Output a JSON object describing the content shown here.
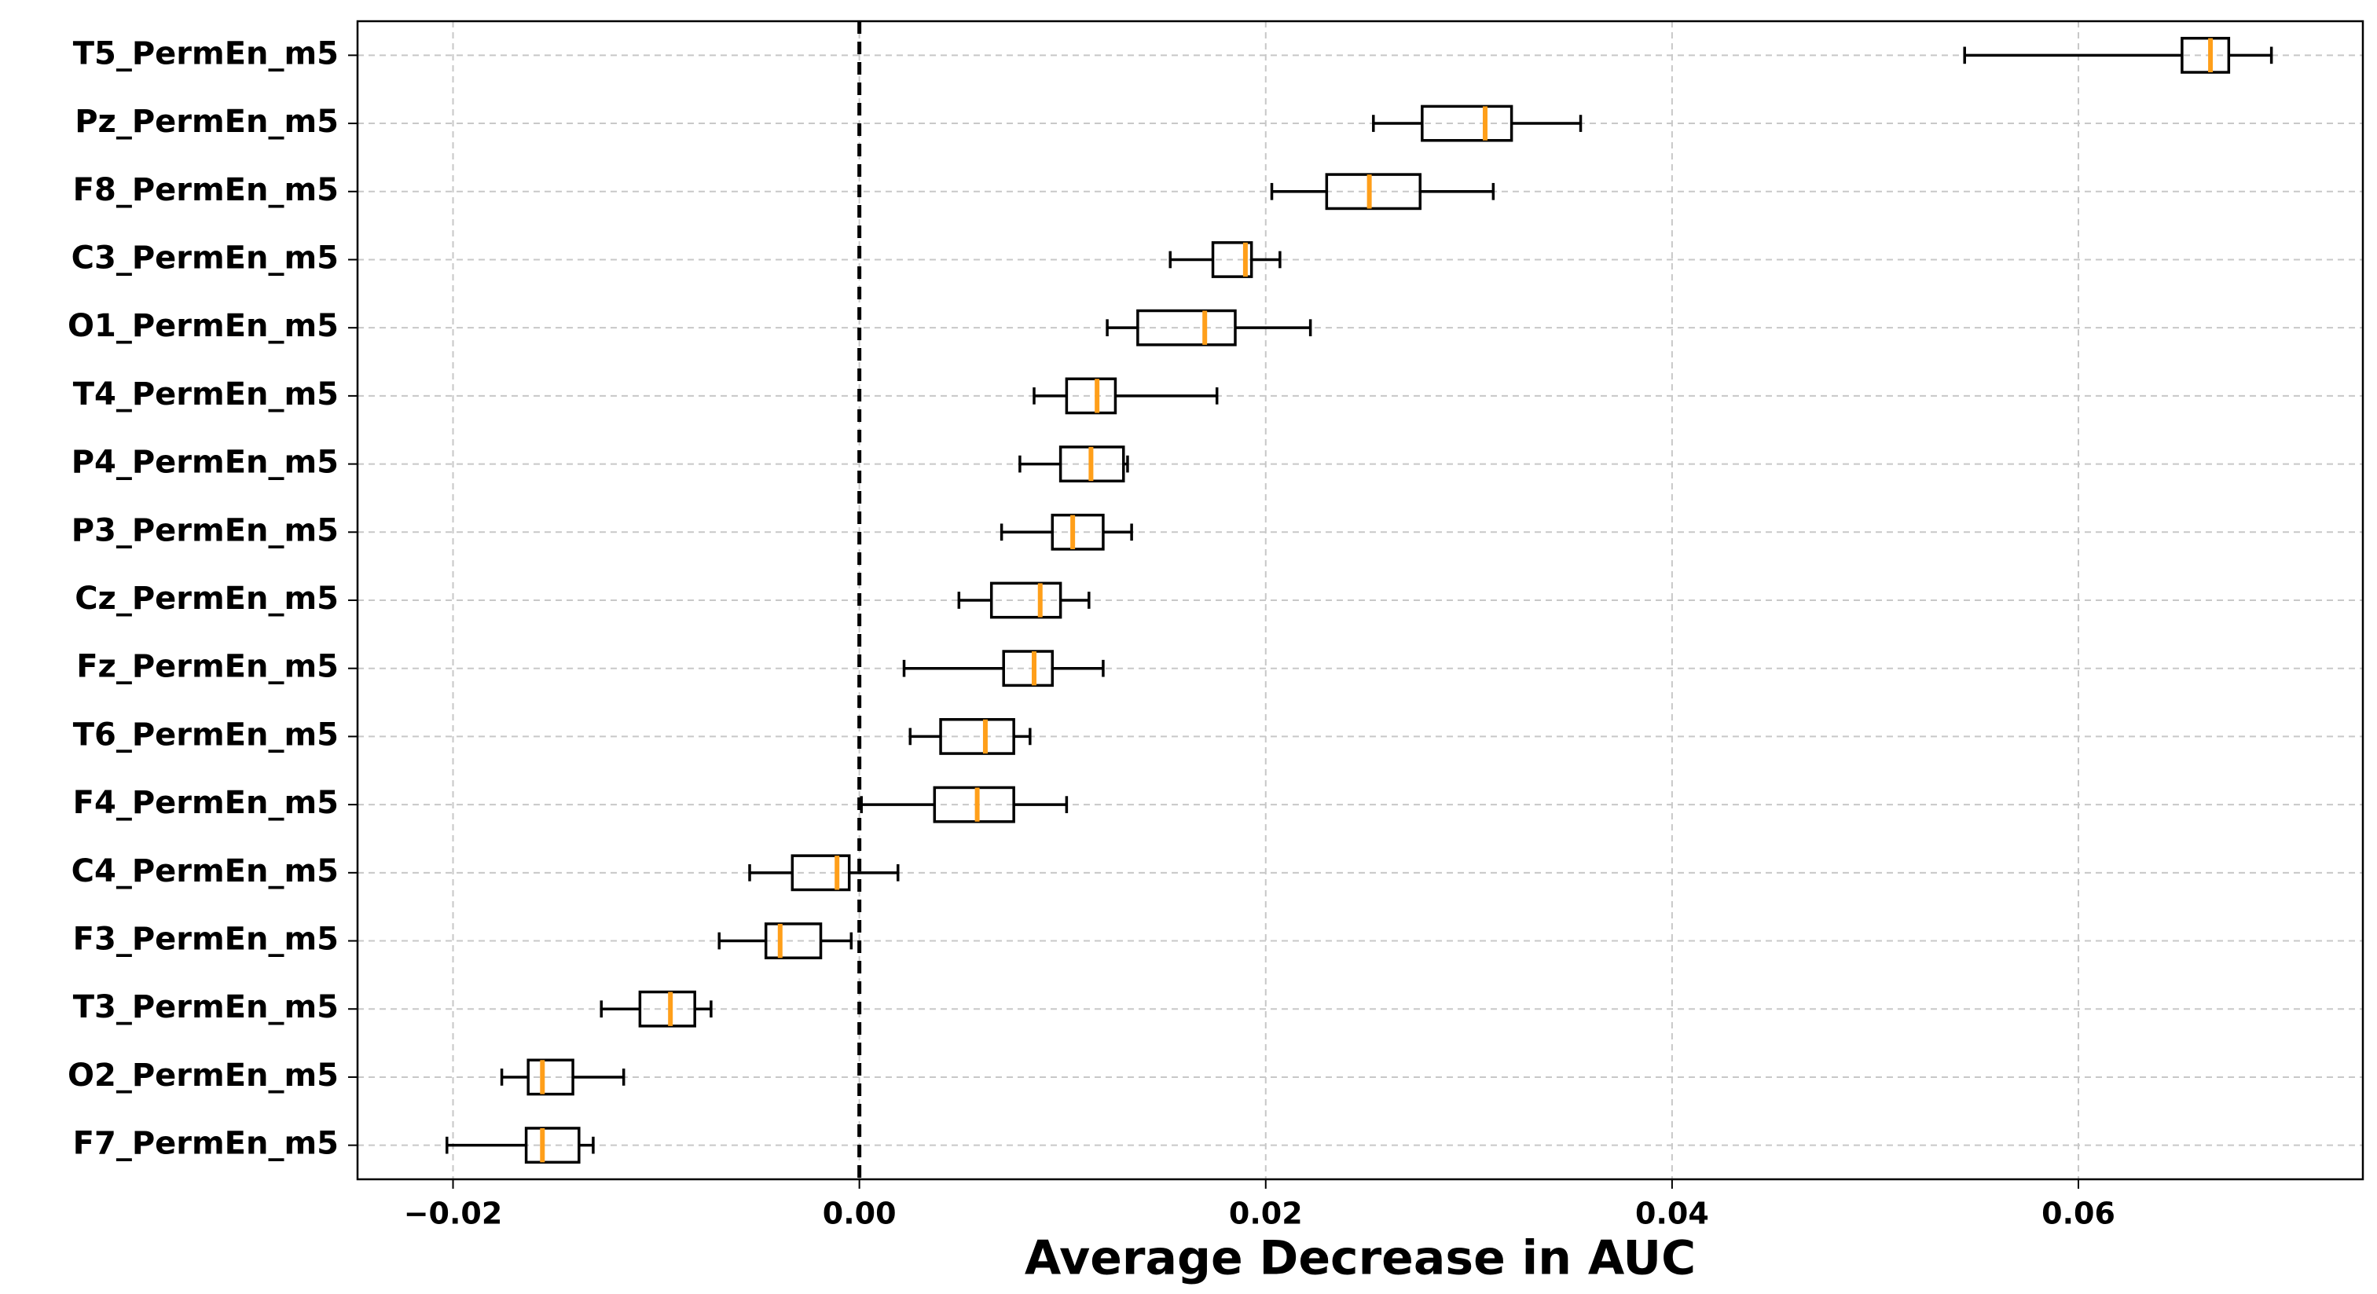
{
  "chart_data": {
    "type": "boxplot",
    "orientation": "horizontal",
    "xlabel": "Average Decrease in AUC",
    "categories": [
      "T5_PermEn_m5",
      "Pz_PermEn_m5",
      "F8_PermEn_m5",
      "C3_PermEn_m5",
      "O1_PermEn_m5",
      "T4_PermEn_m5",
      "P4_PermEn_m5",
      "P3_PermEn_m5",
      "Cz_PermEn_m5",
      "Fz_PermEn_m5",
      "T6_PermEn_m5",
      "F4_PermEn_m5",
      "C4_PermEn_m5",
      "F3_PermEn_m5",
      "T3_PermEn_m5",
      "O2_PermEn_m5",
      "F7_PermEn_m5"
    ],
    "boxes": [
      {
        "whislo": 0.0544,
        "q1": 0.0651,
        "med": 0.0665,
        "q3": 0.0674,
        "whishi": 0.0695
      },
      {
        "whislo": 0.0253,
        "q1": 0.0277,
        "med": 0.0308,
        "q3": 0.0321,
        "whishi": 0.0355
      },
      {
        "whislo": 0.0203,
        "q1": 0.023,
        "med": 0.0251,
        "q3": 0.0276,
        "whishi": 0.0312
      },
      {
        "whislo": 0.0153,
        "q1": 0.0174,
        "med": 0.019,
        "q3": 0.0193,
        "whishi": 0.0207
      },
      {
        "whislo": 0.0122,
        "q1": 0.0137,
        "med": 0.017,
        "q3": 0.0185,
        "whishi": 0.0222
      },
      {
        "whislo": 0.0086,
        "q1": 0.0102,
        "med": 0.0117,
        "q3": 0.0126,
        "whishi": 0.0176
      },
      {
        "whislo": 0.0079,
        "q1": 0.0099,
        "med": 0.0114,
        "q3": 0.013,
        "whishi": 0.0132
      },
      {
        "whislo": 0.007,
        "q1": 0.0095,
        "med": 0.0105,
        "q3": 0.012,
        "whishi": 0.0134
      },
      {
        "whislo": 0.0049,
        "q1": 0.0065,
        "med": 0.0089,
        "q3": 0.0099,
        "whishi": 0.0113
      },
      {
        "whislo": 0.0022,
        "q1": 0.0071,
        "med": 0.0086,
        "q3": 0.0095,
        "whishi": 0.012
      },
      {
        "whislo": 0.0025,
        "q1": 0.004,
        "med": 0.0062,
        "q3": 0.0076,
        "whishi": 0.0084
      },
      {
        "whislo": 0.0001,
        "q1": 0.0037,
        "med": 0.0058,
        "q3": 0.0076,
        "whishi": 0.0102
      },
      {
        "whislo": -0.0054,
        "q1": -0.0033,
        "med": -0.0011,
        "q3": -0.0005,
        "whishi": 0.0019
      },
      {
        "whislo": -0.0069,
        "q1": -0.0046,
        "med": -0.0039,
        "q3": -0.0019,
        "whishi": -0.0004
      },
      {
        "whislo": -0.0127,
        "q1": -0.0108,
        "med": -0.0093,
        "q3": -0.0081,
        "whishi": -0.0073
      },
      {
        "whislo": -0.0176,
        "q1": -0.0163,
        "med": -0.0156,
        "q3": -0.0141,
        "whishi": -0.0116
      },
      {
        "whislo": -0.0203,
        "q1": -0.0164,
        "med": -0.0156,
        "q3": -0.0138,
        "whishi": -0.0131
      }
    ],
    "box_color": "#000000",
    "median_color": "#ff9f1a",
    "reference_line": 0,
    "xlim": [
      -0.0247,
      0.074
    ],
    "xticks": [
      {
        "value": -0.02,
        "label": "−0.02"
      },
      {
        "value": 0,
        "label": "0.00"
      },
      {
        "value": 0.02,
        "label": "0.02"
      },
      {
        "value": 0.04,
        "label": "0.04"
      },
      {
        "value": 0.06,
        "label": "0.06"
      }
    ],
    "grid": true
  }
}
